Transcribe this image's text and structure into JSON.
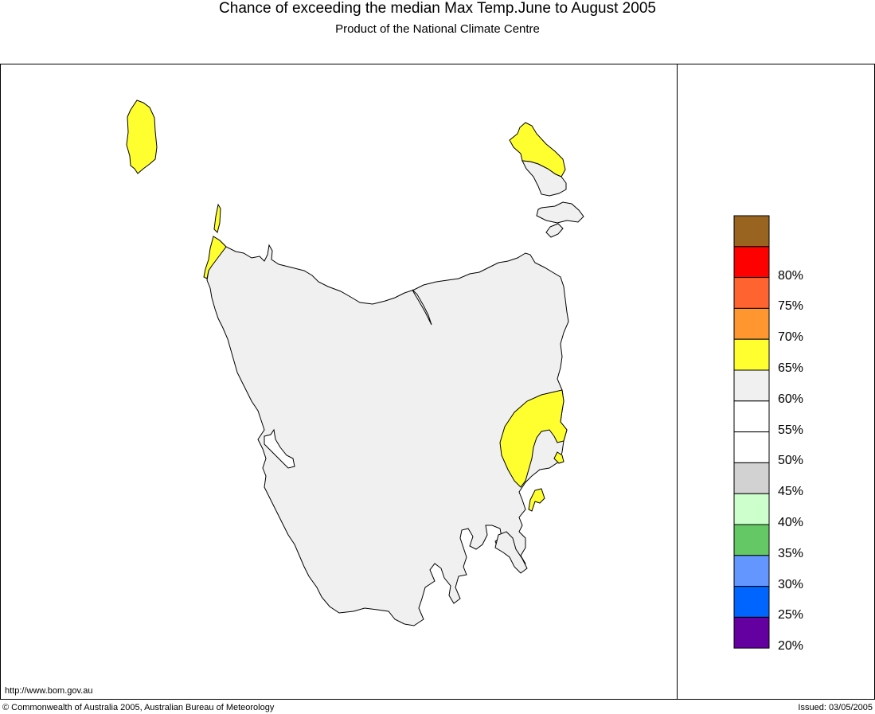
{
  "header": {
    "title": "Chance of exceeding the median Max Temp.June to August 2005",
    "subtitle": "Product of the National Climate Centre"
  },
  "legend": {
    "items": [
      {
        "label": "",
        "color": "#986420"
      },
      {
        "label": "80%",
        "color": "#ff0000"
      },
      {
        "label": "75%",
        "color": "#ff6430"
      },
      {
        "label": "70%",
        "color": "#ff9630"
      },
      {
        "label": "65%",
        "color": "#ffff30"
      },
      {
        "label": "60%",
        "color": "#f0f0f0"
      },
      {
        "label": "55%",
        "color": "#ffffff"
      },
      {
        "label": "50%",
        "color": "#ffffff"
      },
      {
        "label": "45%",
        "color": "#d2d2d2"
      },
      {
        "label": "40%",
        "color": "#ccffcc"
      },
      {
        "label": "35%",
        "color": "#64c864"
      },
      {
        "label": "30%",
        "color": "#6496ff"
      },
      {
        "label": "25%",
        "color": "#0064ff"
      },
      {
        "label": "20%",
        "color": "#6400a0"
      }
    ]
  },
  "map": {
    "region": "Tasmania",
    "base_color": "#f0f0f0",
    "highlight_color": "#ffff30",
    "outline_color": "#000000"
  },
  "footer": {
    "url": "http://www.bom.gov.au",
    "copyright": "© Commonwealth of Australia 2005, Australian Bureau of Meteorology",
    "issued": "Issued: 03/05/2005"
  }
}
